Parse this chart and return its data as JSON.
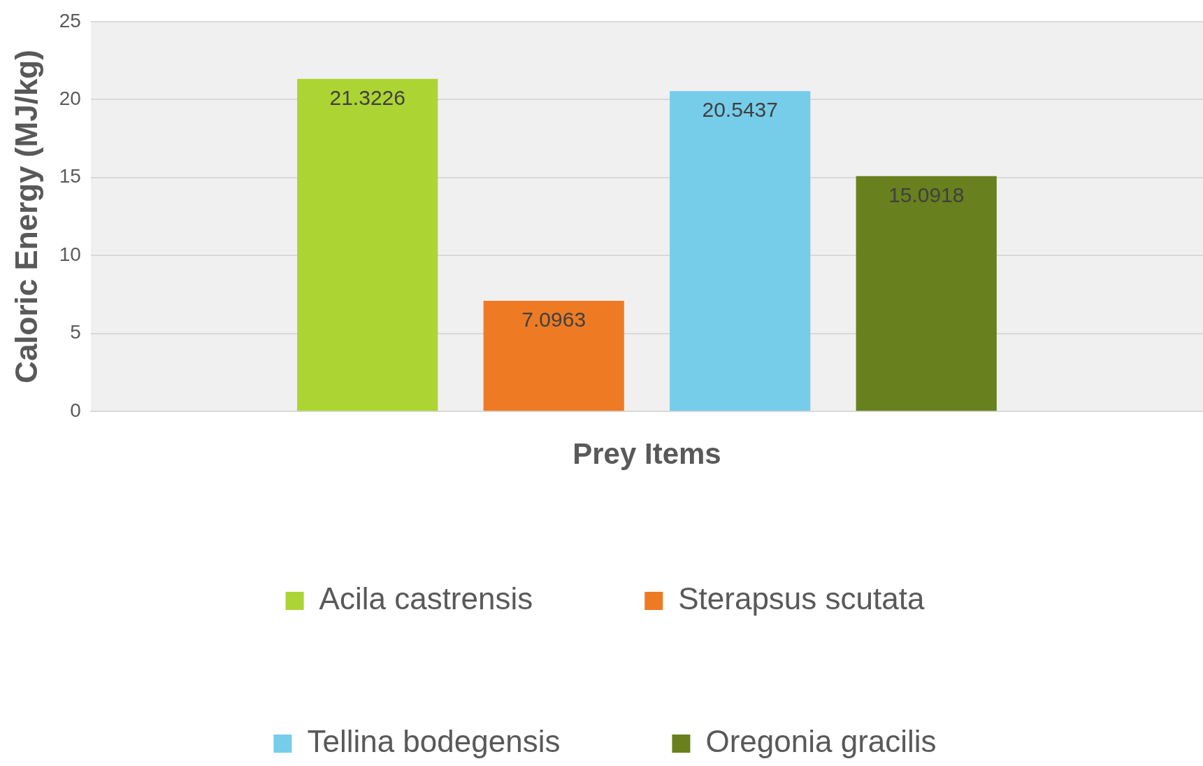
{
  "chart_data": {
    "type": "bar",
    "xlabel": "Prey Items",
    "ylabel": "Caloric Energy (MJ/kg)",
    "categories": [
      null
    ],
    "series": [
      {
        "name": "Acila castrensis",
        "color": "#acd433",
        "values": [
          21.3226
        ]
      },
      {
        "name": "Sterapsus scutata",
        "color": "#ee7b24",
        "values": [
          7.0963
        ]
      },
      {
        "name": "Tellina bodegensis",
        "color": "#76cdea",
        "values": [
          20.5437
        ]
      },
      {
        "name": "Oregonia gracilis",
        "color": "#68801e",
        "values": [
          15.0918
        ]
      }
    ],
    "ylim": [
      0,
      25
    ],
    "yticks": [
      0,
      5,
      10,
      15,
      20,
      25
    ],
    "grid": "y",
    "legend": "bottom",
    "data_labels": true
  }
}
